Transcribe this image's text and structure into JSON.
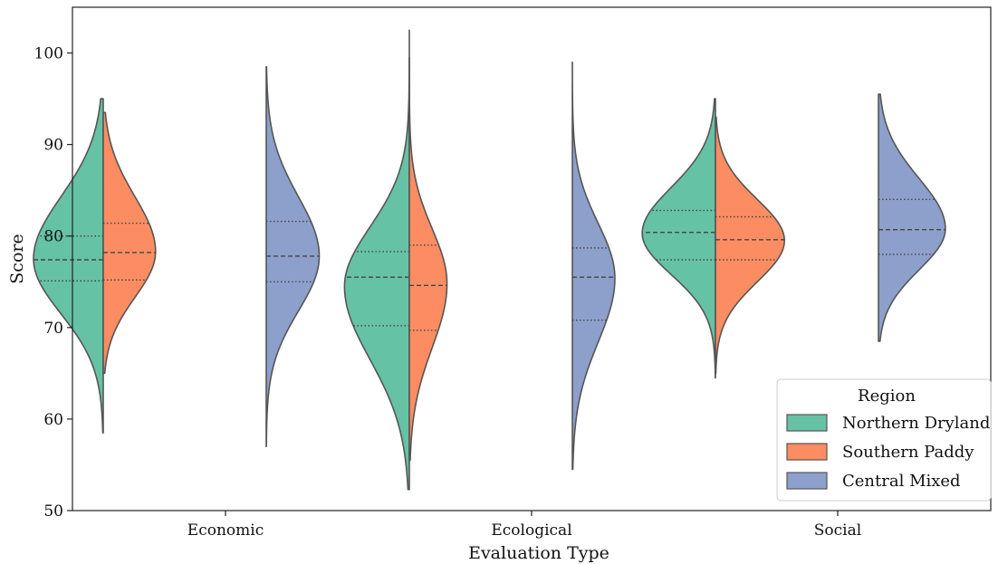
{
  "chart_data": {
    "type": "violin",
    "title": "",
    "xlabel": "Evaluation Type",
    "ylabel": "Score",
    "ylim": [
      50,
      105
    ],
    "yticks": [
      50,
      60,
      70,
      80,
      90,
      100
    ],
    "categories": [
      "Economic",
      "Ecological",
      "Social"
    ],
    "legend": {
      "title": "Region",
      "placement": "lower-right"
    },
    "grid": false,
    "inner": "quartile",
    "series": [
      {
        "name": "Northern Dryland",
        "color": "#66c2a5",
        "side": "left",
        "violins": [
          {
            "category": "Economic",
            "min": 58.5,
            "max": 95.0,
            "mode": 77.5,
            "q1": 75.1,
            "median": 77.4,
            "q3": 80.0,
            "sd_low": 6.0,
            "sd_high": 6.8,
            "peak": 1.0
          },
          {
            "category": "Ecological",
            "min": 52.3,
            "max": 99.5,
            "mode": 74.5,
            "q1": 70.2,
            "median": 75.5,
            "q3": 78.3,
            "sd_low": 8.0,
            "sd_high": 6.5,
            "peak": 0.93
          },
          {
            "category": "Social",
            "min": 64.5,
            "max": 95.0,
            "mode": 80.3,
            "q1": 77.4,
            "median": 80.4,
            "q3": 82.8,
            "sd_low": 4.5,
            "sd_high": 5.0,
            "peak": 1.05
          }
        ]
      },
      {
        "name": "Southern Paddy",
        "color": "#fc8d62",
        "side": "right",
        "violins": [
          {
            "category": "Economic",
            "min": 65.0,
            "max": 93.5,
            "mode": 78.3,
            "q1": 75.2,
            "median": 78.2,
            "q3": 81.4,
            "sd_low": 5.0,
            "sd_high": 6.0,
            "peak": 0.75
          },
          {
            "category": "Ecological",
            "min": 55.5,
            "max": 102.5,
            "mode": 74.8,
            "q1": 69.7,
            "median": 74.6,
            "q3": 79.0,
            "sd_low": 7.0,
            "sd_high": 6.0,
            "peak": 0.54
          },
          {
            "category": "Social",
            "min": 65.0,
            "max": 93.0,
            "mode": 79.5,
            "q1": 77.4,
            "median": 79.6,
            "q3": 82.1,
            "sd_low": 4.5,
            "sd_high": 4.5,
            "peak": 0.99
          }
        ]
      },
      {
        "name": "Central Mixed",
        "color": "#8da0cb",
        "side": "right",
        "violins": [
          {
            "category": "Economic",
            "min": 57.0,
            "max": 98.5,
            "mode": 77.8,
            "q1": 75.0,
            "median": 77.8,
            "q3": 81.6,
            "sd_low": 6.0,
            "sd_high": 6.5,
            "peak": 0.76
          },
          {
            "category": "Ecological",
            "min": 54.5,
            "max": 99.0,
            "mode": 75.4,
            "q1": 70.8,
            "median": 75.5,
            "q3": 78.7,
            "sd_low": 7.0,
            "sd_high": 6.0,
            "peak": 0.61
          },
          {
            "category": "Social",
            "min": 68.5,
            "max": 95.5,
            "mode": 80.8,
            "q1": 78.0,
            "median": 80.7,
            "q3": 84.0,
            "sd_low": 4.5,
            "sd_high": 5.5,
            "peak": 0.96
          }
        ]
      }
    ]
  }
}
